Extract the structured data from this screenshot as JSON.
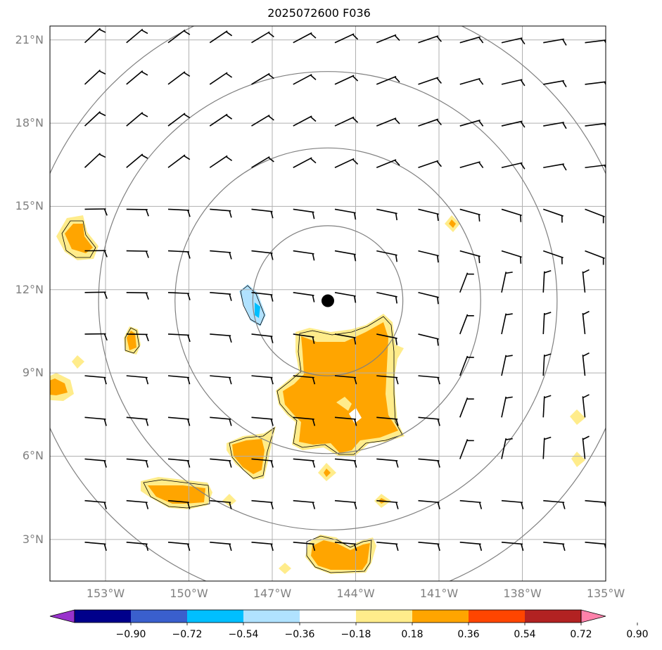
{
  "title": "2025072600 F036",
  "lat_labels": [
    "21°N",
    "18°N",
    "15°N",
    "12°N",
    "9°N",
    "6°N",
    "3°N"
  ],
  "lon_labels": [
    "153°W",
    "150°W",
    "147°W",
    "144°W",
    "141°W",
    "138°W",
    "135°W"
  ],
  "extent": {
    "lon_min": -155.0,
    "lon_max": -135.0,
    "lat_min": 1.5,
    "lat_max": 21.5
  },
  "storm_center": {
    "lon": -145.0,
    "lat": 11.6
  },
  "range_rings_deg": [
    2.7,
    5.5,
    8.25,
    11.0
  ],
  "colorbar": {
    "levels": [
      "−0.90",
      "−0.72",
      "−0.54",
      "−0.36",
      "−0.18",
      "0.18",
      "0.36",
      "0.54",
      "0.72",
      "0.90"
    ],
    "colors": [
      "#9932cc",
      "#00008b",
      "#3a5fcd",
      "#00bfff",
      "#b0e2ff",
      "#ffffff",
      "#ffec8b",
      "#ffa500",
      "#ff4500",
      "#b22222",
      "#ff82ab"
    ]
  },
  "colors": {
    "grid": "#b0b0b0",
    "ring": "#808080",
    "positive_light": "#ffec8b",
    "positive_mid": "#ffa500",
    "negative_light": "#b0e2ff",
    "negative_mid": "#00bfff"
  }
}
